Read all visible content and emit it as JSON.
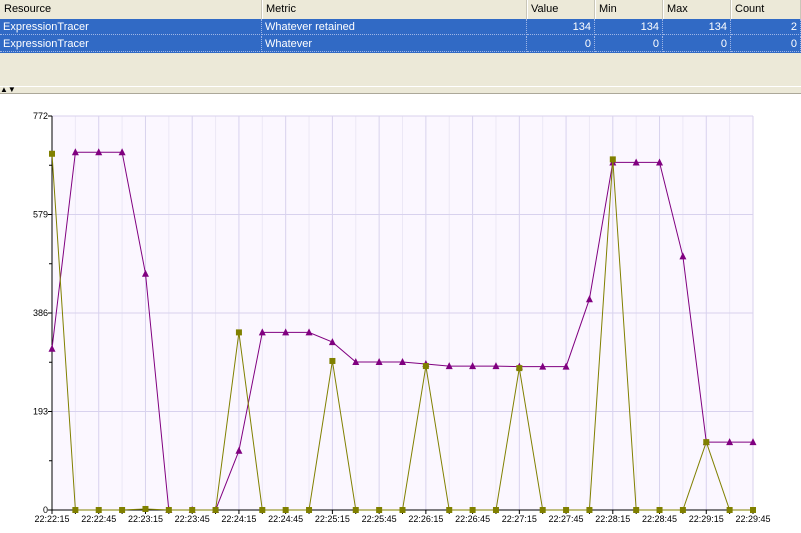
{
  "table": {
    "columns": [
      "Resource",
      "Metric",
      "Value",
      "Min",
      "Max",
      "Count"
    ],
    "rows": [
      {
        "resource": "ExpressionTracer",
        "metric": "Whatever retained",
        "value": "134",
        "min": "134",
        "max": "134",
        "count": "2"
      },
      {
        "resource": "ExpressionTracer",
        "metric": "Whatever",
        "value": "0",
        "min": "0",
        "max": "0",
        "count": "0"
      }
    ]
  },
  "chart_data": {
    "type": "line",
    "yticks": [
      "772",
      "579",
      "386",
      "193",
      "0"
    ],
    "ylim": [
      0,
      772
    ],
    "xticks": [
      "22:22:15",
      "22:22:45",
      "22:23:15",
      "22:23:45",
      "22:24:15",
      "22:24:45",
      "22:25:15",
      "22:25:45",
      "22:26:15",
      "22:26:45",
      "22:27:15",
      "22:27:45",
      "22:28:15",
      "22:28:45",
      "22:29:15",
      "22:29:45"
    ],
    "grid": true,
    "series": [
      {
        "color": "#800080",
        "marker": "triangle",
        "values": [
          316,
          701,
          701,
          701,
          463,
          0,
          0,
          0,
          116,
          348,
          348,
          348,
          329,
          290,
          290,
          290,
          286,
          282,
          282,
          282,
          281,
          281,
          281,
          413,
          681,
          681,
          681,
          497,
          133,
          133,
          133
        ]
      },
      {
        "color": "#808000",
        "marker": "square",
        "values": [
          698,
          0,
          0,
          0,
          2,
          0,
          0,
          0,
          348,
          0,
          0,
          0,
          292,
          0,
          0,
          0,
          282,
          0,
          0,
          0,
          278,
          0,
          0,
          0,
          687,
          0,
          0,
          0,
          133,
          0,
          0
        ]
      }
    ]
  }
}
